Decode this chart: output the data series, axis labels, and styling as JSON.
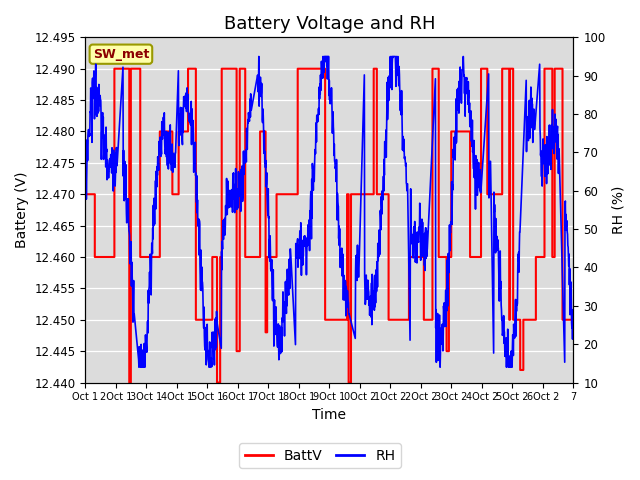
{
  "title": "Battery Voltage and RH",
  "xlabel": "Time",
  "ylabel_left": "Battery (V)",
  "ylabel_right": "RH (%)",
  "x_tick_labels": [
    "Oct 1",
    "2Oct 1",
    "3Oct 1",
    "4Oct 1",
    "5Oct 1",
    "6Oct 1",
    "7Oct 1",
    "8Oct 1",
    "9Oct 1",
    "0Oct 2",
    "1Oct 2",
    "2Oct 2",
    "3Oct 2",
    "4Oct 2",
    "5Oct 2",
    "6Oct 2",
    "7"
  ],
  "x_tick_positions": [
    0,
    1,
    2,
    3,
    4,
    5,
    6,
    7,
    8,
    9,
    10,
    11,
    12,
    13,
    14,
    15,
    16
  ],
  "xlim": [
    0,
    16
  ],
  "ylim_left": [
    12.44,
    12.495
  ],
  "ylim_right": [
    10,
    100
  ],
  "yticks_left": [
    12.44,
    12.445,
    12.45,
    12.455,
    12.46,
    12.465,
    12.47,
    12.475,
    12.48,
    12.485,
    12.49,
    12.495
  ],
  "yticks_right": [
    10,
    20,
    30,
    40,
    50,
    60,
    70,
    80,
    90,
    100
  ],
  "batt_color": "#FF0000",
  "rh_color": "#0000FF",
  "background_color": "#DCDCDC",
  "legend_label_batt": "BattV",
  "legend_label_rh": "RH",
  "station_label": "SW_met",
  "station_box_facecolor": "#FFFFAA",
  "station_box_edgecolor": "#999900",
  "title_fontsize": 13,
  "axis_fontsize": 10,
  "tick_fontsize": 8.5
}
